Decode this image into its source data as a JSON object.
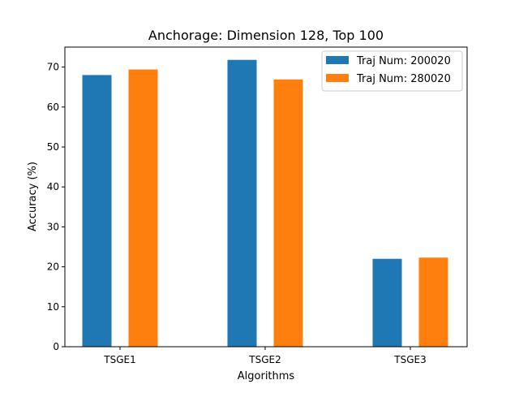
{
  "chart_data": {
    "type": "bar",
    "title": "Anchorage: Dimension 128, Top 100",
    "xlabel": "Algorithms",
    "ylabel": "Accuracy (%)",
    "categories": [
      "TSGE1",
      "TSGE2",
      "TSGE3"
    ],
    "series": [
      {
        "name": "Traj Num: 200020",
        "color": "#1f77b4",
        "values": [
          68.0,
          71.8,
          22.0
        ]
      },
      {
        "name": "Traj Num: 280020",
        "color": "#ff7f0e",
        "values": [
          69.4,
          66.9,
          22.3
        ]
      }
    ],
    "ylim": [
      0,
      75
    ],
    "yticks": [
      0,
      10,
      20,
      30,
      40,
      50,
      60,
      70
    ],
    "grid": false,
    "legend_position": "top-right"
  }
}
